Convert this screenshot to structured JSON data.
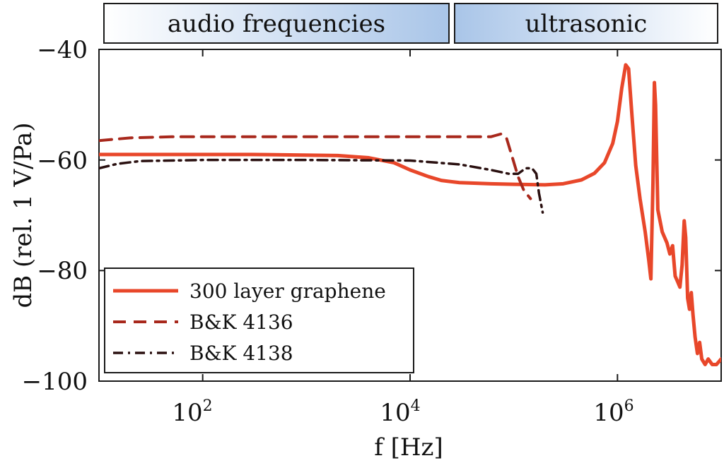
{
  "bands": [
    {
      "label": "audio frequencies",
      "color_left": "#ffffff",
      "color_right": "#a9c5e8"
    },
    {
      "label": "ultrasonic",
      "color_left": "#a9c5e8",
      "color_right": "#ffffff"
    }
  ],
  "chart_data": {
    "type": "line",
    "title": "",
    "xlabel": "f [Hz]",
    "ylabel": "dB (rel. 1 V/Pa)",
    "xscale": "log",
    "xlim": [
      10,
      10000000
    ],
    "ylim": [
      -100,
      -40
    ],
    "xticks": [
      {
        "value": 100,
        "base": "10",
        "exp": "2"
      },
      {
        "value": 10000,
        "base": "10",
        "exp": "4"
      },
      {
        "value": 1000000,
        "base": "10",
        "exp": "6"
      }
    ],
    "yticks": [
      {
        "value": -40,
        "label": "−40"
      },
      {
        "value": -60,
        "label": "−60"
      },
      {
        "value": -80,
        "label": "−80"
      },
      {
        "value": -100,
        "label": "−100"
      }
    ],
    "grid": false,
    "legend_position": "bottom-left",
    "series": [
      {
        "name": "300 layer graphene",
        "style": "solid",
        "color": "#e8472a",
        "points": [
          [
            10,
            -59
          ],
          [
            50,
            -59
          ],
          [
            300,
            -59
          ],
          [
            2000,
            -59.2
          ],
          [
            4000,
            -59.6
          ],
          [
            7000,
            -60.5
          ],
          [
            10000,
            -61.8
          ],
          [
            15000,
            -63
          ],
          [
            20000,
            -63.7
          ],
          [
            30000,
            -64.1
          ],
          [
            60000,
            -64.3
          ],
          [
            100000,
            -64.4
          ],
          [
            200000,
            -64.5
          ],
          [
            300000,
            -64.3
          ],
          [
            450000,
            -63.6
          ],
          [
            600000,
            -62.4
          ],
          [
            750000,
            -60.5
          ],
          [
            900000,
            -57
          ],
          [
            1000000,
            -53
          ],
          [
            1100000,
            -47
          ],
          [
            1200000,
            -42.8
          ],
          [
            1280000,
            -43.5
          ],
          [
            1380000,
            -52
          ],
          [
            1500000,
            -61
          ],
          [
            1650000,
            -67
          ],
          [
            1850000,
            -73
          ],
          [
            2000000,
            -78
          ],
          [
            2100000,
            -81.5
          ],
          [
            2200000,
            -64
          ],
          [
            2270000,
            -46
          ],
          [
            2330000,
            -50
          ],
          [
            2450000,
            -69
          ],
          [
            2700000,
            -73
          ],
          [
            3000000,
            -75
          ],
          [
            3200000,
            -77
          ],
          [
            3400000,
            -75.5
          ],
          [
            3600000,
            -81
          ],
          [
            3800000,
            -82
          ],
          [
            4000000,
            -83
          ],
          [
            4200000,
            -79
          ],
          [
            4400000,
            -71
          ],
          [
            4550000,
            -74
          ],
          [
            4750000,
            -85
          ],
          [
            4950000,
            -87
          ],
          [
            5150000,
            -84
          ],
          [
            5350000,
            -88
          ],
          [
            5600000,
            -92
          ],
          [
            5900000,
            -95
          ],
          [
            6200000,
            -93
          ],
          [
            6500000,
            -96
          ],
          [
            7000000,
            -97
          ],
          [
            7500000,
            -96
          ],
          [
            8200000,
            -97
          ],
          [
            9000000,
            -97
          ],
          [
            10000000,
            -96
          ]
        ]
      },
      {
        "name": "B&K 4136",
        "style": "dashed",
        "color": "#a8281c",
        "points": [
          [
            10,
            -56.5
          ],
          [
            20,
            -56
          ],
          [
            50,
            -55.8
          ],
          [
            1000,
            -55.8
          ],
          [
            10000,
            -55.8
          ],
          [
            40000,
            -55.8
          ],
          [
            60000,
            -55.8
          ],
          [
            75000,
            -55.3
          ],
          [
            85000,
            -56
          ],
          [
            95000,
            -59
          ],
          [
            110000,
            -63
          ],
          [
            125000,
            -65.5
          ],
          [
            145000,
            -67
          ]
        ]
      },
      {
        "name": "B&K 4138",
        "style": "dashdot",
        "color": "#2a1010",
        "points": [
          [
            10,
            -61.5
          ],
          [
            15,
            -60.7
          ],
          [
            25,
            -60.2
          ],
          [
            100,
            -60
          ],
          [
            1000,
            -60
          ],
          [
            10000,
            -60.1
          ],
          [
            30000,
            -60.8
          ],
          [
            60000,
            -61.8
          ],
          [
            90000,
            -62.5
          ],
          [
            110000,
            -62.5
          ],
          [
            130000,
            -61.5
          ],
          [
            150000,
            -61.5
          ],
          [
            165000,
            -62.5
          ],
          [
            175000,
            -66
          ],
          [
            190000,
            -69.5
          ]
        ]
      }
    ]
  }
}
